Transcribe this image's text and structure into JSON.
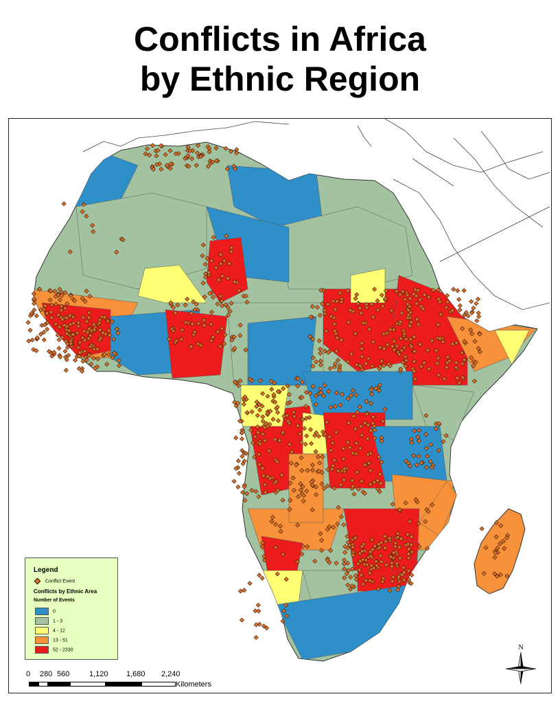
{
  "title_line1": "Conflicts in Africa",
  "title_line2": "by Ethnic Region",
  "legend": {
    "title": "Legend",
    "event_label": "Conflict Event",
    "subtitle": "Conflicts by Ethnic Area",
    "field": "Number of Events",
    "classes": [
      {
        "label": "0",
        "color": "#2f8fc9"
      },
      {
        "label": "1 - 3",
        "color": "#a3c3a0"
      },
      {
        "label": "4 - 12",
        "color": "#ffff73"
      },
      {
        "label": "13 - 51",
        "color": "#f7913a"
      },
      {
        "label": "52 - 2330",
        "color": "#ec1c1c"
      }
    ]
  },
  "scale": {
    "ticks": [
      "0",
      "280",
      "560",
      "1,120",
      "1,680",
      "2,240"
    ],
    "unit": "Kilometers"
  },
  "north_label": "N",
  "colors": {
    "water": "#ffffff",
    "border": "#333333",
    "event_fill": "#d9712b",
    "event_stroke": "#3a1a05"
  }
}
